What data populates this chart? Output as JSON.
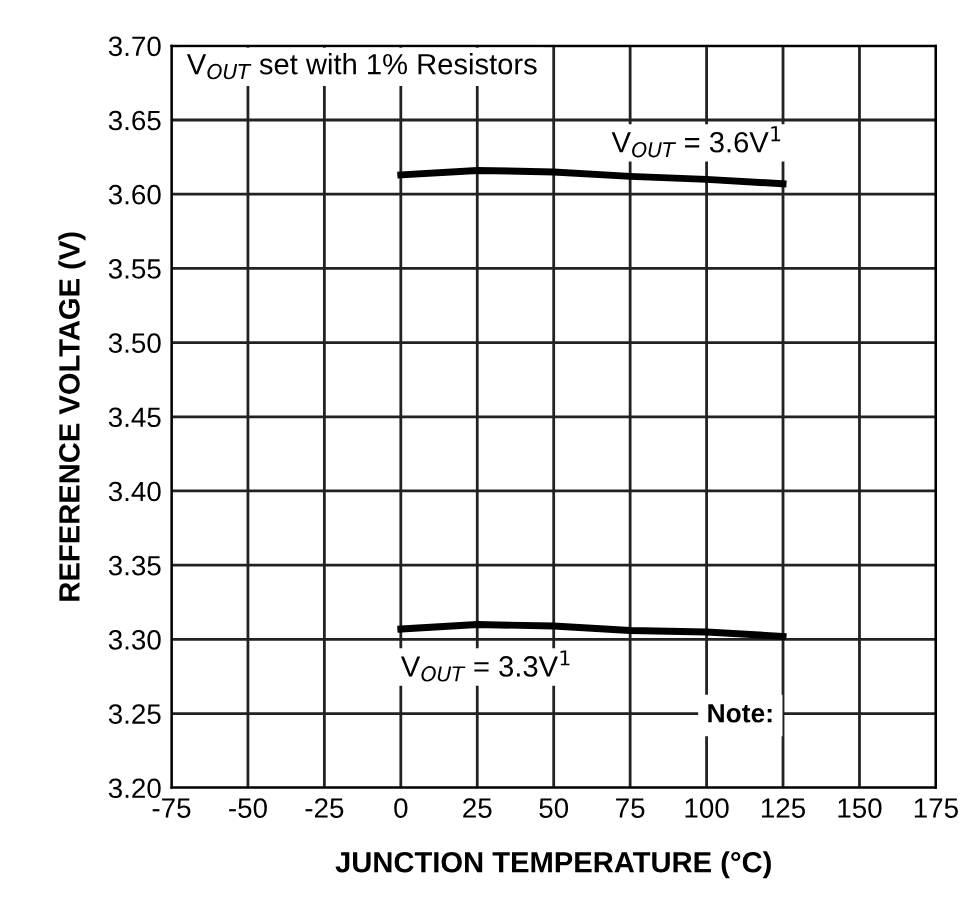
{
  "chart_data": {
    "type": "line",
    "xlabel": "JUNCTION TEMPERATURE (°C)",
    "ylabel": "REFERENCE VOLTAGE (V)",
    "x": [
      0,
      25,
      50,
      75,
      100,
      125
    ],
    "series": [
      {
        "name": "V$_{OUT}$ = 3.6V$^{1}$",
        "color": "#000000",
        "values": [
          3.613,
          3.616,
          3.615,
          3.612,
          3.61,
          3.607
        ]
      },
      {
        "name": "V$_{OUT}$ = 3.3V$^{1}$",
        "color": "#000000",
        "values": [
          3.307,
          3.31,
          3.309,
          3.306,
          3.305,
          3.302
        ]
      }
    ],
    "xlim": [
      -75,
      175
    ],
    "xticks": [
      -75,
      -50,
      -25,
      0,
      25,
      50,
      75,
      100,
      125,
      150,
      175
    ],
    "ylim": [
      3.2,
      3.7
    ],
    "yticks": [
      {
        "value": 3.2,
        "label": "3.20"
      },
      3.25,
      {
        "value": 3.3,
        "label": "3.30"
      },
      3.35,
      {
        "value": 3.4,
        "label": "3.40"
      },
      3.45,
      {
        "value": 3.5,
        "label": "3.50"
      },
      3.55,
      {
        "value": 3.6,
        "label": "3.60"
      },
      3.65,
      {
        "value": 3.7,
        "label": "3.70"
      }
    ],
    "annotations": [
      "V$_{OUT}$ set with 1% Resistors",
      "Note:"
    ],
    "grid": true,
    "marker": "none",
    "line_style": "solid"
  }
}
